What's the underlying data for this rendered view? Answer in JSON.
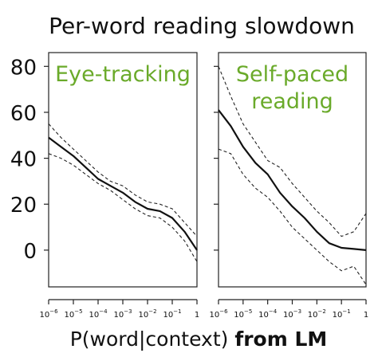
{
  "chart_data": {
    "type": "line",
    "title": "Per-word reading slowdown",
    "xlabel_prefix": "P(word|context) ",
    "xlabel_bold": "from LM",
    "ylim": [
      -16,
      86
    ],
    "yticks": [
      "80",
      "60",
      "40",
      "20",
      "0"
    ],
    "ytick_values": [
      80,
      60,
      40,
      20,
      0
    ],
    "xticks": [
      {
        "base": "10",
        "exp": "−6",
        "value": -6
      },
      {
        "base": "10",
        "exp": "−5",
        "value": -5
      },
      {
        "base": "10",
        "exp": "−4",
        "value": -4
      },
      {
        "base": "10",
        "exp": "−3",
        "value": -3
      },
      {
        "base": "10",
        "exp": "−2",
        "value": -2
      },
      {
        "base": "10",
        "exp": "−1",
        "value": -1
      },
      {
        "base": "1",
        "exp": "",
        "value": 0
      }
    ],
    "xlim": [
      -6,
      0
    ],
    "x_scale": "log10",
    "accent_color": "#6aaa2a",
    "panels": [
      {
        "label": "Eye-tracking",
        "x": [
          -6,
          -5.5,
          -5,
          -4.5,
          -4,
          -3.5,
          -3,
          -2.5,
          -2,
          -1.5,
          -1,
          -0.5,
          0
        ],
        "mean": [
          49,
          45,
          41,
          36,
          31,
          28,
          25,
          21,
          18,
          17,
          14,
          8,
          0
        ],
        "upper": [
          55,
          49,
          44,
          39,
          34,
          30,
          28,
          24,
          21,
          20,
          18,
          12,
          6
        ],
        "lower": [
          42,
          40,
          37,
          33,
          29,
          26,
          22,
          18,
          15,
          14,
          10,
          4,
          -5
        ]
      },
      {
        "label": "Self-paced reading",
        "x": [
          -6,
          -5.5,
          -5,
          -4.5,
          -4,
          -3.5,
          -3,
          -2.5,
          -2,
          -1.5,
          -1,
          -0.5,
          0
        ],
        "mean": [
          61,
          54,
          45,
          38,
          33,
          25,
          19,
          14,
          8,
          3,
          1,
          0.5,
          0
        ],
        "upper": [
          80,
          67,
          55,
          47,
          39,
          36,
          29,
          23,
          17,
          12,
          6,
          8,
          16
        ],
        "lower": [
          44,
          42,
          33,
          27,
          23,
          17,
          10,
          5,
          0,
          -5,
          -9,
          -7,
          -15
        ]
      }
    ]
  }
}
